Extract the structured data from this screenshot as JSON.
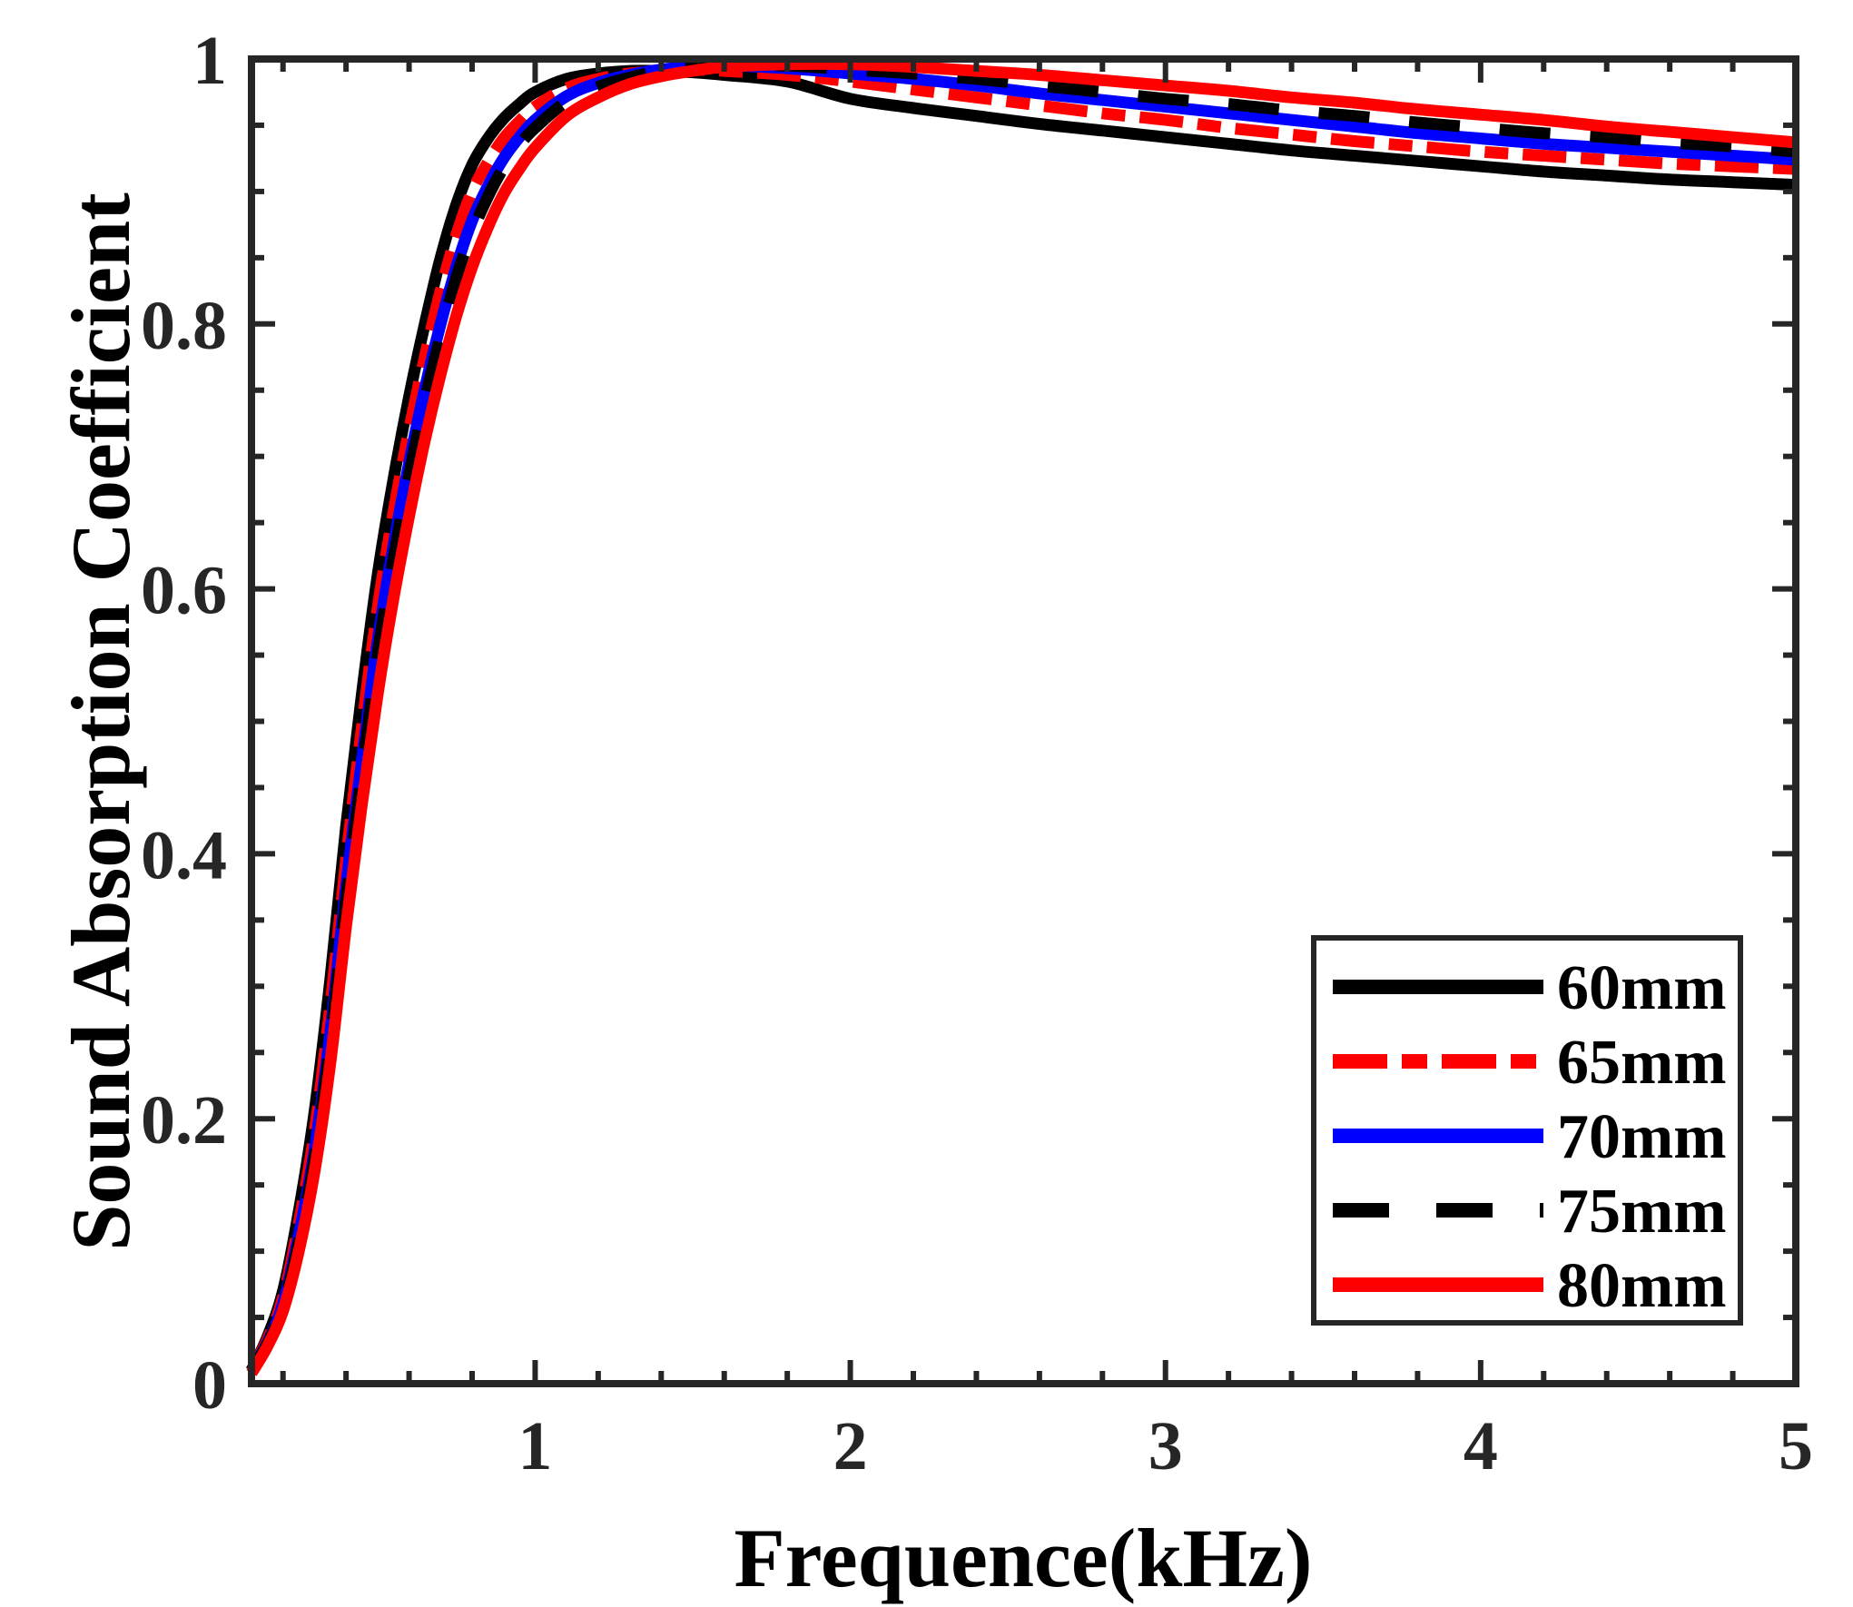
{
  "figure": {
    "background": "#ffffff",
    "axis_color": "#262626",
    "text_color": "#262626"
  },
  "chart_data": {
    "type": "line",
    "title": "",
    "xlabel": "Frequence(kHz)",
    "ylabel": "Sound Absorption Coefficient",
    "xlim": [
      0.1,
      5
    ],
    "ylim": [
      0,
      1
    ],
    "grid": "off",
    "legend_position": "inside lower right",
    "x_ticks": {
      "major": [
        {
          "value": 1,
          "label": "1"
        },
        {
          "value": 2,
          "label": "2"
        },
        {
          "value": 3,
          "label": "3"
        },
        {
          "value": 4,
          "label": "4"
        },
        {
          "value": 5,
          "label": "5"
        }
      ],
      "minor_step": 0.2
    },
    "y_ticks": {
      "major": [
        {
          "value": 0,
          "label": "0"
        },
        {
          "value": 0.2,
          "label": "0.2"
        },
        {
          "value": 0.4,
          "label": "0.4"
        },
        {
          "value": 0.6,
          "label": "0.6"
        },
        {
          "value": 0.8,
          "label": "0.8"
        },
        {
          "value": 1,
          "label": "1"
        }
      ],
      "minor_step": 0.05
    },
    "x": [
      0.1,
      0.15,
      0.2,
      0.25,
      0.3,
      0.35,
      0.4,
      0.45,
      0.5,
      0.55,
      0.6,
      0.65,
      0.7,
      0.75,
      0.8,
      0.85,
      0.9,
      0.95,
      1.0,
      1.1,
      1.2,
      1.3,
      1.4,
      1.5,
      1.6,
      1.8,
      2.0,
      2.2,
      2.4,
      2.6,
      2.8,
      3.0,
      3.2,
      3.4,
      3.6,
      3.8,
      4.0,
      4.2,
      4.4,
      4.6,
      4.8,
      5.0
    ],
    "series": [
      {
        "name": "60mm",
        "color": "#000000",
        "style": "solid",
        "dash": "",
        "legend_dash": "",
        "values": [
          0.01,
          0.035,
          0.07,
          0.13,
          0.205,
          0.305,
          0.42,
          0.52,
          0.61,
          0.682,
          0.745,
          0.8,
          0.85,
          0.89,
          0.92,
          0.94,
          0.955,
          0.966,
          0.975,
          0.985,
          0.989,
          0.991,
          0.991,
          0.99,
          0.988,
          0.983,
          0.97,
          0.963,
          0.957,
          0.951,
          0.946,
          0.941,
          0.936,
          0.931,
          0.927,
          0.923,
          0.919,
          0.915,
          0.912,
          0.909,
          0.907,
          0.905
        ]
      },
      {
        "name": "65mm",
        "color": "#ff0000",
        "style": "dash-dot",
        "dash": "48 16 26 16",
        "legend_dash": "60 16 28 16",
        "values": [
          0.01,
          0.033,
          0.065,
          0.121,
          0.19,
          0.285,
          0.395,
          0.495,
          0.585,
          0.657,
          0.72,
          0.775,
          0.825,
          0.867,
          0.9,
          0.922,
          0.94,
          0.953,
          0.964,
          0.978,
          0.985,
          0.989,
          0.991,
          0.992,
          0.991,
          0.988,
          0.983,
          0.977,
          0.971,
          0.965,
          0.959,
          0.954,
          0.948,
          0.943,
          0.938,
          0.934,
          0.93,
          0.927,
          0.924,
          0.921,
          0.919,
          0.917
        ]
      },
      {
        "name": "70mm",
        "color": "#0000ff",
        "style": "solid",
        "dash": "",
        "legend_dash": "",
        "values": [
          0.01,
          0.031,
          0.06,
          0.112,
          0.176,
          0.265,
          0.375,
          0.47,
          0.56,
          0.632,
          0.695,
          0.751,
          0.8,
          0.843,
          0.878,
          0.904,
          0.925,
          0.941,
          0.954,
          0.972,
          0.982,
          0.988,
          0.992,
          0.994,
          0.995,
          0.993,
          0.989,
          0.985,
          0.98,
          0.974,
          0.969,
          0.964,
          0.959,
          0.954,
          0.949,
          0.944,
          0.94,
          0.936,
          0.933,
          0.93,
          0.927,
          0.924
        ]
      },
      {
        "name": "75mm",
        "color": "#000000",
        "style": "dashed",
        "dash": "56 44",
        "legend_dash": "62 52",
        "values": [
          0.01,
          0.03,
          0.058,
          0.107,
          0.17,
          0.257,
          0.365,
          0.46,
          0.55,
          0.622,
          0.686,
          0.742,
          0.791,
          0.835,
          0.869,
          0.896,
          0.918,
          0.935,
          0.948,
          0.968,
          0.979,
          0.986,
          0.991,
          0.994,
          0.995,
          0.995,
          0.992,
          0.989,
          0.985,
          0.98,
          0.975,
          0.97,
          0.966,
          0.961,
          0.957,
          0.952,
          0.948,
          0.944,
          0.941,
          0.937,
          0.934,
          0.93
        ]
      },
      {
        "name": "80mm",
        "color": "#ff0000",
        "style": "solid",
        "dash": "",
        "legend_dash": "",
        "values": [
          0.008,
          0.028,
          0.055,
          0.1,
          0.16,
          0.242,
          0.345,
          0.437,
          0.52,
          0.592,
          0.655,
          0.712,
          0.762,
          0.806,
          0.843,
          0.873,
          0.898,
          0.917,
          0.933,
          0.957,
          0.971,
          0.981,
          0.987,
          0.991,
          0.994,
          0.996,
          0.996,
          0.994,
          0.991,
          0.988,
          0.984,
          0.98,
          0.976,
          0.971,
          0.967,
          0.962,
          0.958,
          0.954,
          0.949,
          0.945,
          0.941,
          0.937
        ]
      }
    ]
  }
}
